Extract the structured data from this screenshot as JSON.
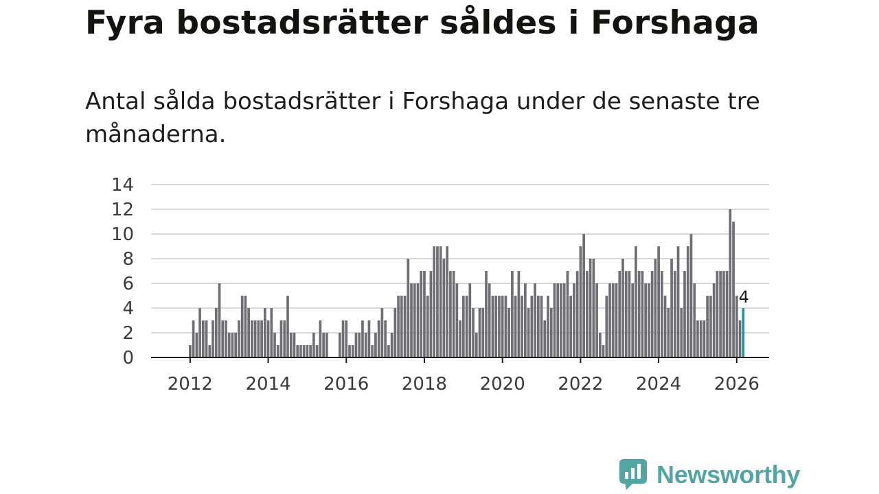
{
  "title": "Fyra bostadsrätter såldes i Forshaga",
  "subtitle": "Antal sålda bostadsrätter i Forshaga under de senaste tre månaderna.",
  "brand": {
    "name": "Newsworthy",
    "color": "#53a5a3"
  },
  "colors": {
    "bar": "#6f6e74",
    "highlight": "#1a9a98",
    "grid": "#d9d9d9",
    "axis": "#1a1a1a"
  },
  "chart_data": {
    "type": "bar",
    "title": "Fyra bostadsrätter såldes i Forshaga",
    "xlabel": "",
    "ylabel": "",
    "ylim": [
      0,
      14
    ],
    "yticks": [
      0,
      2,
      4,
      6,
      8,
      10,
      12,
      14
    ],
    "xlim": [
      2011.0,
      2026.83
    ],
    "xticks": [
      2012,
      2014,
      2016,
      2018,
      2020,
      2022,
      2024,
      2026
    ],
    "start_year": 2012,
    "start_month": 1,
    "frequency": "monthly",
    "highlight_label": "4",
    "values": [
      1,
      3,
      2,
      4,
      3,
      3,
      1,
      3,
      4,
      6,
      3,
      3,
      2,
      2,
      2,
      3,
      5,
      5,
      4,
      3,
      3,
      3,
      3,
      4,
      3,
      4,
      2,
      1,
      3,
      3,
      5,
      2,
      2,
      1,
      1,
      1,
      1,
      1,
      2,
      1,
      3,
      2,
      2,
      0,
      0,
      0,
      2,
      3,
      3,
      1,
      1,
      2,
      2,
      3,
      2,
      3,
      1,
      2,
      3,
      4,
      3,
      1,
      2,
      4,
      5,
      5,
      5,
      8,
      6,
      6,
      6,
      7,
      7,
      5,
      7,
      9,
      9,
      9,
      8,
      9,
      7,
      7,
      6,
      3,
      5,
      5,
      6,
      4,
      2,
      4,
      4,
      7,
      6,
      5,
      5,
      5,
      5,
      5,
      4,
      7,
      5,
      7,
      5,
      6,
      4,
      5,
      6,
      5,
      5,
      3,
      5,
      4,
      6,
      6,
      6,
      6,
      7,
      5,
      6,
      7,
      9,
      10,
      7,
      8,
      8,
      6,
      2,
      1,
      5,
      6,
      6,
      6,
      7,
      8,
      7,
      7,
      6,
      9,
      7,
      7,
      6,
      6,
      7,
      8,
      9,
      7,
      5,
      4,
      8,
      7,
      9,
      4,
      7,
      9,
      10,
      6,
      3,
      3,
      3,
      5,
      5,
      6,
      7,
      7,
      7,
      7,
      12,
      11,
      5,
      3,
      4
    ]
  }
}
